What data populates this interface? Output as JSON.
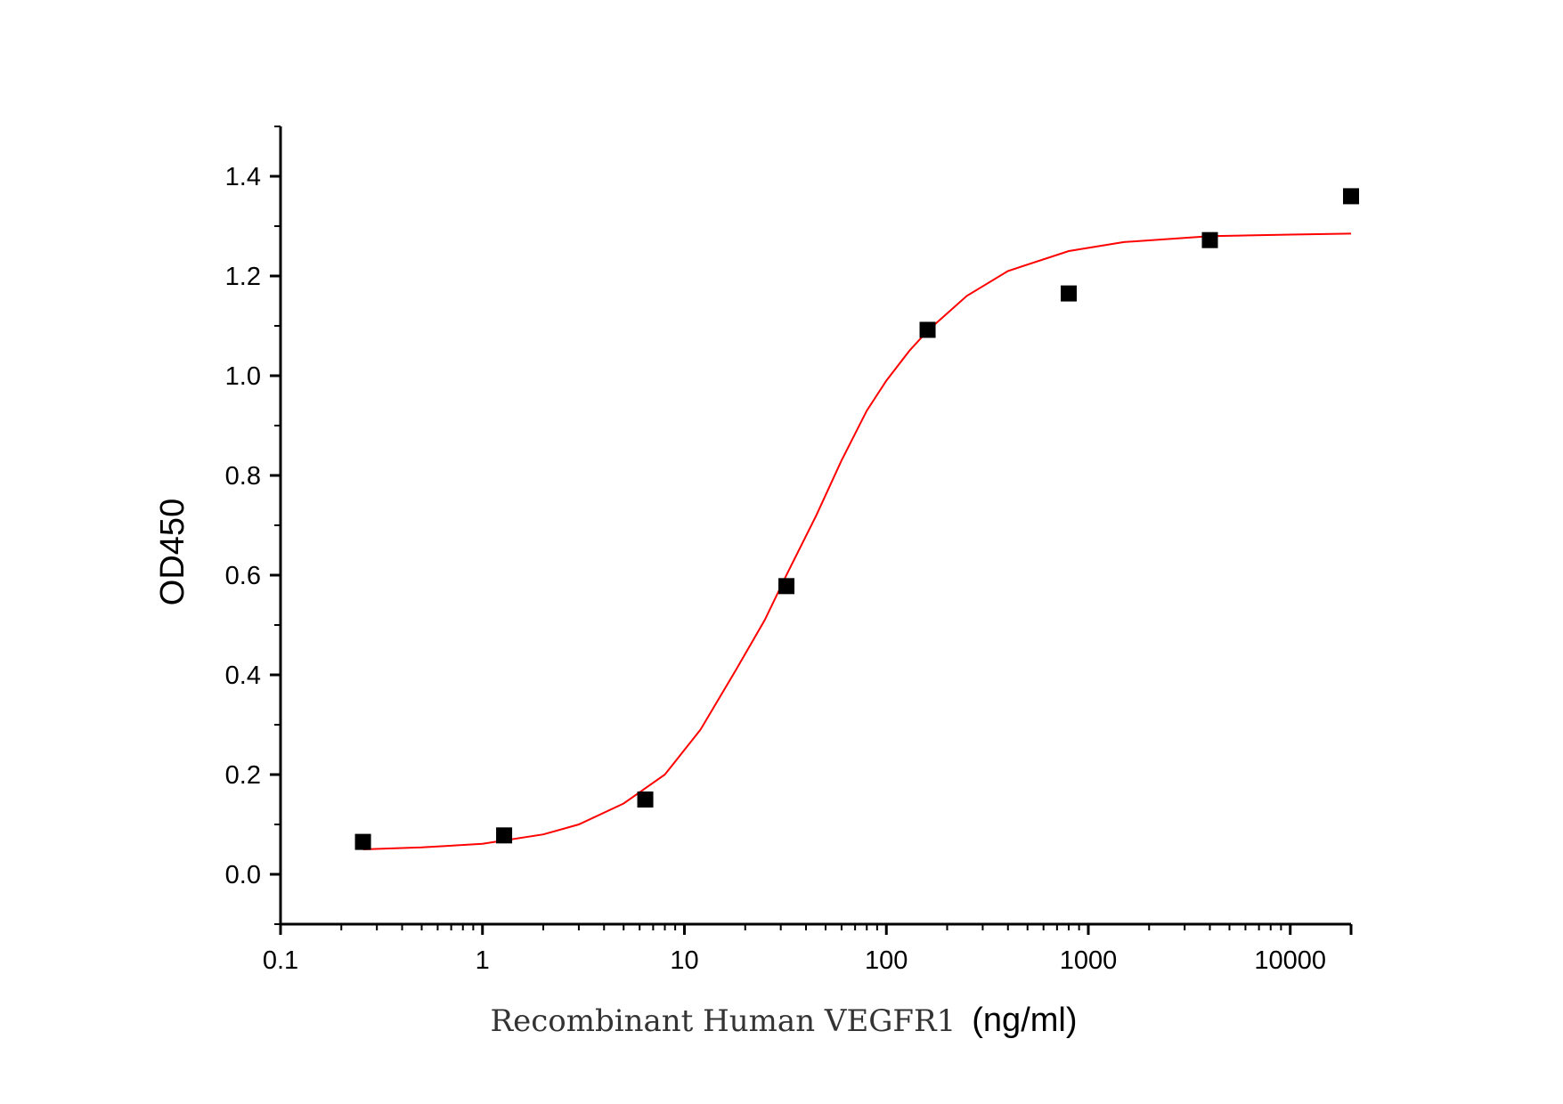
{
  "chart_data": {
    "type": "scatter",
    "xlabel": "Recombinant Human VEGFR1",
    "xlabel_unit": "(ng/ml)",
    "ylabel": "OD450",
    "x_scale": "log",
    "xlim": [
      0.1,
      20000
    ],
    "ylim": [
      -0.1,
      1.5
    ],
    "x_ticks": [
      0.1,
      1,
      10,
      100,
      1000,
      10000
    ],
    "x_tick_labels": [
      "0.1",
      "1",
      "10",
      "100",
      "1000",
      "10000"
    ],
    "y_ticks": [
      0.0,
      0.2,
      0.4,
      0.6,
      0.8,
      1.0,
      1.2,
      1.4
    ],
    "y_tick_labels": [
      "0.0",
      "0.2",
      "0.4",
      "0.6",
      "0.8",
      "1.0",
      "1.2",
      "1.4"
    ],
    "grid": false,
    "series": [
      {
        "type": "scatter",
        "marker": "square",
        "color": "#000000",
        "x": [
          0.256,
          1.28,
          6.4,
          32,
          160,
          800,
          4000,
          20000
        ],
        "y": [
          0.065,
          0.078,
          0.15,
          0.578,
          1.092,
          1.165,
          1.272,
          1.36
        ]
      },
      {
        "type": "line",
        "color": "#ff0000",
        "fit": "4-parameter logistic",
        "x": [
          0.256,
          0.5,
          1,
          2,
          3,
          5,
          8,
          12,
          18,
          25,
          32,
          45,
          60,
          80,
          100,
          130,
          160,
          250,
          400,
          800,
          1500,
          4000,
          10000,
          20000
        ],
        "y": [
          0.05,
          0.054,
          0.061,
          0.08,
          0.1,
          0.142,
          0.2,
          0.29,
          0.41,
          0.51,
          0.6,
          0.72,
          0.83,
          0.93,
          0.99,
          1.05,
          1.09,
          1.16,
          1.21,
          1.25,
          1.268,
          1.28,
          1.283,
          1.285
        ]
      }
    ]
  }
}
